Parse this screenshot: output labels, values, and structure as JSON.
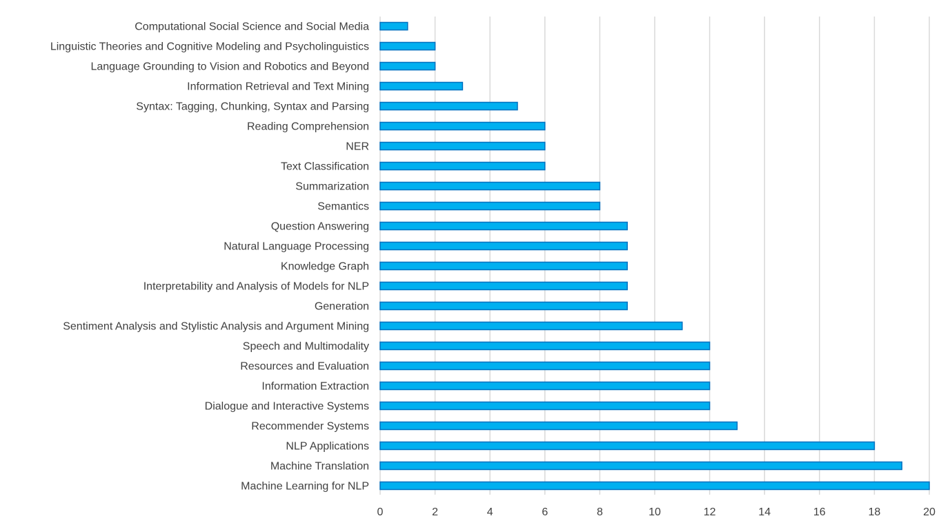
{
  "chart_data": {
    "type": "bar",
    "orientation": "horizontal",
    "title": "",
    "xlabel": "",
    "ylabel": "",
    "xlim": [
      0,
      20
    ],
    "x_ticks": [
      0,
      2,
      4,
      6,
      8,
      10,
      12,
      14,
      16,
      18,
      20
    ],
    "grid": "vertical",
    "legend": "none",
    "colors": {
      "bar_fill": "#00B0F0",
      "bar_stroke": "#0070C0",
      "grid": "#D9D9D9",
      "text": "#404040"
    },
    "categories": [
      "Computational Social Science and Social Media",
      "Linguistic Theories and Cognitive Modeling and Psycholinguistics",
      "Language Grounding to Vision and Robotics and Beyond",
      "Information Retrieval and Text Mining",
      "Syntax: Tagging, Chunking, Syntax and Parsing",
      "Reading Comprehension",
      "NER",
      "Text Classification",
      "Summarization",
      "Semantics",
      "Question Answering",
      "Natural Language Processing",
      "Knowledge Graph",
      "Interpretability and Analysis of Models for NLP",
      "Generation",
      "Sentiment Analysis and Stylistic Analysis and Argument Mining",
      "Speech and Multimodality",
      "Resources and Evaluation",
      "Information Extraction",
      "Dialogue and Interactive Systems",
      "Recommender Systems",
      "NLP Applications",
      "Machine Translation",
      "Machine Learning for NLP"
    ],
    "values": [
      1,
      2,
      2,
      3,
      5,
      6,
      6,
      6,
      8,
      8,
      9,
      9,
      9,
      9,
      9,
      11,
      12,
      12,
      12,
      12,
      13,
      18,
      19,
      20
    ]
  }
}
